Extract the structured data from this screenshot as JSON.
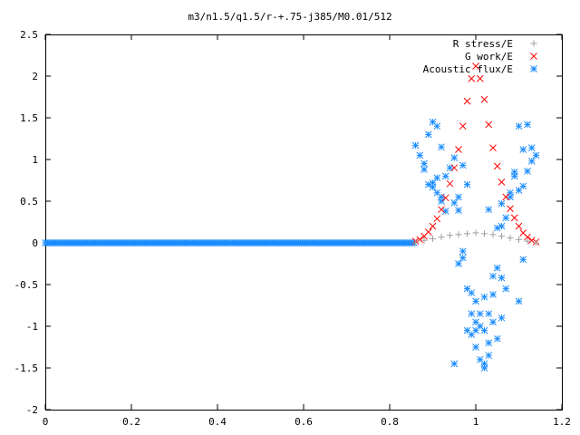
{
  "chart_data": {
    "type": "scatter",
    "title": "m3/n1.5/q1.5/r-+.75-j385/M0.01/512",
    "xlabel": "",
    "ylabel": "",
    "xlim": [
      0,
      1.2
    ],
    "ylim": [
      -2,
      2.5
    ],
    "x_ticks": [
      "0",
      "0.2",
      "0.4",
      "0.6",
      "0.8",
      "1",
      "1.2"
    ],
    "y_ticks": [
      "-2",
      "-1.5",
      "-1",
      "-0.5",
      "0",
      "0.5",
      "1",
      "1.5",
      "2",
      "2.5"
    ],
    "grid": false,
    "legend_position": "top-right",
    "series": [
      {
        "name": "R stress/E",
        "marker": "plus",
        "color": "#a0a0a0",
        "x": [
          0.86,
          0.88,
          0.9,
          0.92,
          0.94,
          0.96,
          0.98,
          1.0,
          1.02,
          1.04,
          1.06,
          1.08,
          1.1,
          1.12,
          1.14
        ],
        "y": [
          0.0,
          0.03,
          0.05,
          0.07,
          0.09,
          0.1,
          0.11,
          0.12,
          0.11,
          0.1,
          0.08,
          0.06,
          0.04,
          0.02,
          0.0
        ]
      },
      {
        "name": "G work/E",
        "marker": "cross",
        "color": "#ff0000",
        "x": [
          0.86,
          0.87,
          0.88,
          0.89,
          0.9,
          0.91,
          0.92,
          0.93,
          0.94,
          0.95,
          0.96,
          0.97,
          0.98,
          0.99,
          1.0,
          1.01,
          1.02,
          1.03,
          1.04,
          1.05,
          1.06,
          1.07,
          1.08,
          1.09,
          1.1,
          1.11,
          1.12,
          1.13,
          1.14
        ],
        "y": [
          0.02,
          0.04,
          0.08,
          0.13,
          0.2,
          0.29,
          0.4,
          0.54,
          0.71,
          0.9,
          1.12,
          1.4,
          1.7,
          1.97,
          2.12,
          1.97,
          1.72,
          1.42,
          1.14,
          0.92,
          0.73,
          0.55,
          0.41,
          0.3,
          0.2,
          0.12,
          0.07,
          0.03,
          0.01
        ]
      },
      {
        "name": "Acoustic flux/E",
        "marker": "star",
        "color": "#1a8cff",
        "baseline_x": [
          0,
          0.86
        ],
        "baseline_y": 0,
        "x": [
          0.86,
          0.87,
          0.88,
          0.89,
          0.9,
          0.9,
          0.91,
          0.92,
          0.93,
          0.95,
          0.96,
          0.88,
          0.89,
          0.9,
          0.91,
          0.92,
          0.94,
          0.95,
          0.97,
          0.93,
          0.92,
          0.91,
          0.96,
          0.98,
          1.03,
          1.05,
          1.06,
          1.07,
          1.08,
          1.09,
          1.1,
          1.11,
          1.12,
          1.13,
          1.14,
          1.1,
          1.12,
          1.13,
          1.11,
          1.09,
          1.08,
          1.06,
          1.04,
          1.03,
          0.97,
          0.98,
          0.99,
          1.0,
          1.01,
          1.02,
          1.03,
          1.04,
          1.05,
          1.06,
          0.98,
          0.99,
          1.0,
          1.01,
          1.02,
          1.03,
          0.99,
          1.0,
          1.01,
          1.02,
          1.05,
          1.07,
          1.1,
          1.11,
          0.95,
          0.96,
          0.97,
          1.0,
          1.02,
          1.04,
          1.06
        ],
        "y": [
          1.17,
          1.05,
          0.88,
          1.3,
          1.45,
          0.67,
          0.78,
          0.55,
          0.38,
          0.48,
          0.39,
          0.95,
          0.7,
          0.72,
          0.6,
          0.5,
          0.9,
          1.02,
          0.93,
          0.8,
          1.15,
          1.4,
          0.55,
          0.7,
          0.4,
          0.18,
          0.47,
          0.3,
          0.6,
          0.85,
          0.63,
          0.68,
          0.86,
          0.98,
          1.05,
          1.4,
          1.42,
          1.14,
          1.12,
          0.8,
          0.55,
          0.2,
          -0.4,
          -0.85,
          -0.18,
          -0.55,
          -0.85,
          -0.95,
          -1.0,
          -1.05,
          -1.2,
          -0.95,
          -1.15,
          -0.9,
          -1.05,
          -1.1,
          -1.25,
          -1.4,
          -1.45,
          -1.35,
          -0.6,
          -0.7,
          -0.85,
          -1.5,
          -0.3,
          -0.55,
          -0.7,
          -0.2,
          -1.45,
          -0.25,
          -0.1,
          -1.05,
          -0.65,
          -0.62,
          -0.42
        ]
      }
    ]
  }
}
